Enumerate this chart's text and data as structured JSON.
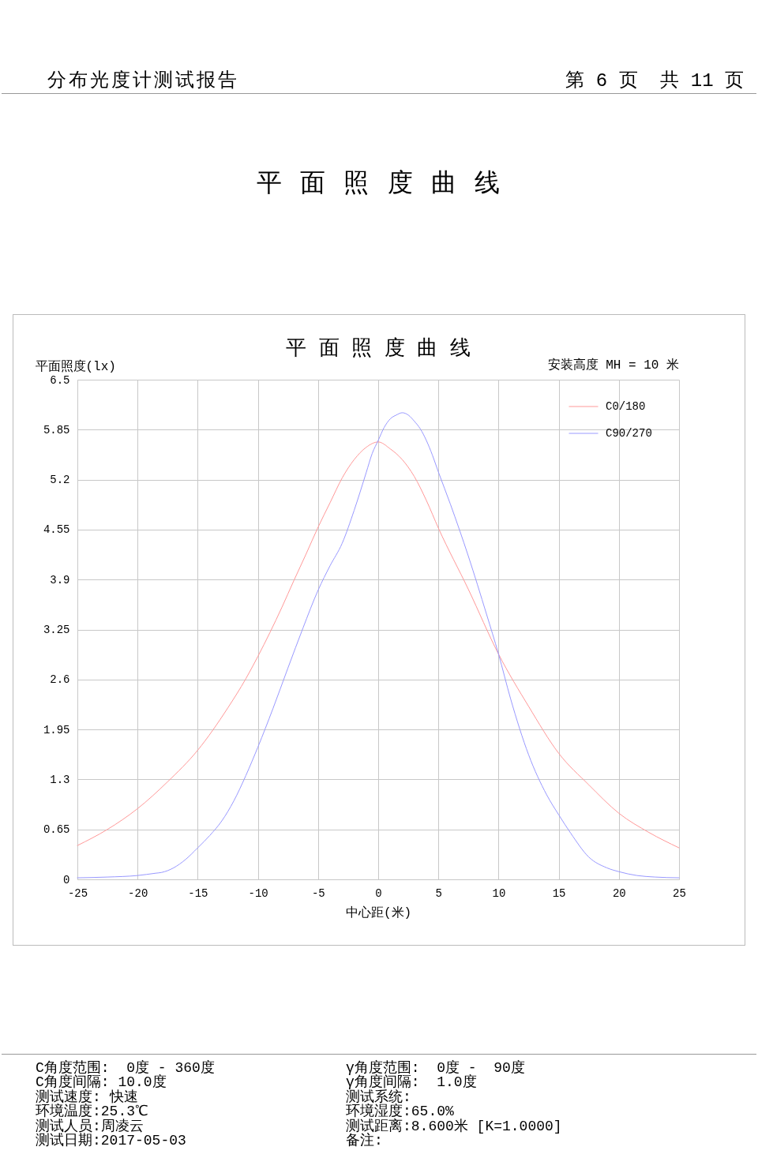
{
  "chart_data": {
    "type": "line",
    "title": "平 面 照 度 曲 线",
    "xlabel": "中心距(米)",
    "ylabel": "平面照度(lx)",
    "annotations": [
      "分布光度计测试报告",
      "第 6 页  共 11 页",
      "平 面 照 度 曲 线",
      "安装高度 MH = 10 米",
      "C角度范围:  0度 - 360度",
      "C角度间隔: 10.0度",
      "测试速度: 快速",
      "环境温度:25.3℃",
      "测试人员:周凌云",
      "测试日期:2017-05-03",
      "γ角度范围:  0度 -  90度",
      "γ角度间隔:  1.0度",
      "测试系统:",
      "环境湿度:65.0%",
      "测试距离:8.600米 [K=1.0000]",
      "备注:"
    ],
    "series": [
      {
        "name": "C0/180",
        "color": "#ff9999",
        "x": [
          -25,
          -22.5,
          -20,
          -17.5,
          -15,
          -12.5,
          -11,
          -10,
          -9,
          -8,
          -7,
          -6,
          -5,
          -4,
          -3,
          -2,
          -1,
          0,
          1,
          2,
          3,
          4,
          5,
          7.5,
          10,
          12.5,
          15,
          17.5,
          20,
          22.5,
          25
        ],
        "values": [
          0.44,
          0.65,
          0.92,
          1.27,
          1.68,
          2.23,
          2.61,
          2.9,
          3.21,
          3.54,
          3.89,
          4.23,
          4.58,
          4.9,
          5.22,
          5.46,
          5.62,
          5.69,
          5.6,
          5.46,
          5.24,
          4.93,
          4.57,
          3.77,
          2.93,
          2.25,
          1.64,
          1.23,
          0.86,
          0.61,
          0.41
        ]
      },
      {
        "name": "C90/270",
        "color": "#9999ff",
        "x": [
          -25,
          -22.5,
          -20,
          -18.5,
          -18,
          -17,
          -16,
          -15,
          -14,
          -13,
          -12,
          -11,
          -10,
          -8.75,
          -7.5,
          -6.25,
          -5,
          -4,
          -3,
          -2,
          -1,
          -0.5,
          0,
          0.5,
          1,
          1.5,
          2,
          2.5,
          3,
          3.5,
          4,
          4.5,
          5,
          6,
          7.5,
          9,
          10,
          11,
          12.5,
          14,
          15,
          16,
          17.5,
          19,
          20,
          21.5,
          23,
          25
        ],
        "values": [
          0.02,
          0.03,
          0.05,
          0.08,
          0.09,
          0.15,
          0.26,
          0.41,
          0.57,
          0.76,
          1.02,
          1.35,
          1.72,
          2.22,
          2.75,
          3.27,
          3.76,
          4.08,
          4.37,
          4.8,
          5.29,
          5.54,
          5.71,
          5.88,
          5.99,
          6.04,
          6.07,
          6.04,
          5.96,
          5.86,
          5.71,
          5.52,
          5.3,
          4.88,
          4.2,
          3.45,
          2.93,
          2.35,
          1.62,
          1.1,
          0.84,
          0.6,
          0.29,
          0.15,
          0.1,
          0.05,
          0.03,
          0.02
        ]
      }
    ],
    "xlim": [
      -25,
      25
    ],
    "xticks": [
      -25,
      -20,
      -15,
      -10,
      -5,
      0,
      5,
      10,
      15,
      20,
      25
    ],
    "ylim": [
      0,
      6.5
    ],
    "yticks": [
      0,
      0.65,
      1.3,
      1.95,
      2.6,
      3.25,
      3.9,
      4.55,
      5.2,
      5.85,
      6.5
    ],
    "grid": true,
    "legend": "top right"
  }
}
